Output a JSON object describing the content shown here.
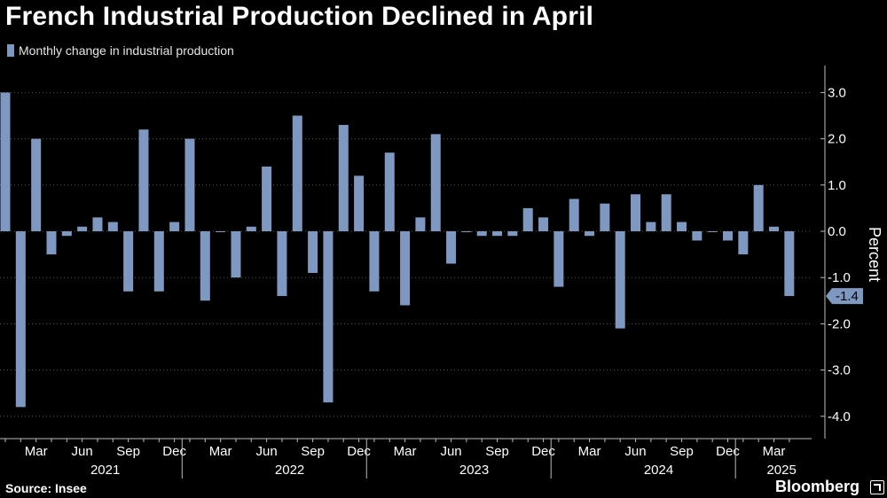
{
  "title": "French Industrial Production Declined in April",
  "legend": {
    "label": "Monthly change in industrial production"
  },
  "colors": {
    "bar": "#7f98c1",
    "axis": "#bbbbbb",
    "grid": "#555555",
    "background": "#000000"
  },
  "source": "Source: Insee",
  "brand": "Bloomberg",
  "chart_data": {
    "type": "bar",
    "title": "French Industrial Production Declined in April",
    "ylabel": "Percent",
    "ylim": [
      -4.5,
      3.3
    ],
    "yticks": [
      "3.0",
      "2.0",
      "1.0",
      "0.0",
      "-1.0",
      "-2.0",
      "-3.0",
      "-4.0"
    ],
    "ytick_values": [
      3,
      2,
      1,
      0,
      -1,
      -2,
      -3,
      -4
    ],
    "grid": true,
    "categories": [
      "Jan 2021",
      "Feb 2021",
      "Mar 2021",
      "Apr 2021",
      "May 2021",
      "Jun 2021",
      "Jul 2021",
      "Aug 2021",
      "Sep 2021",
      "Oct 2021",
      "Nov 2021",
      "Dec 2021",
      "Jan 2022",
      "Feb 2022",
      "Mar 2022",
      "Apr 2022",
      "May 2022",
      "Jun 2022",
      "Jul 2022",
      "Aug 2022",
      "Sep 2022",
      "Oct 2022",
      "Nov 2022",
      "Dec 2022",
      "Jan 2023",
      "Feb 2023",
      "Mar 2023",
      "Apr 2023",
      "May 2023",
      "Jun 2023",
      "Jul 2023",
      "Aug 2023",
      "Sep 2023",
      "Oct 2023",
      "Nov 2023",
      "Dec 2023",
      "Jan 2024",
      "Feb 2024",
      "Mar 2024",
      "Apr 2024",
      "May 2024",
      "Jun 2024",
      "Jul 2024",
      "Aug 2024",
      "Sep 2024",
      "Oct 2024",
      "Nov 2024",
      "Dec 2024",
      "Jan 2025",
      "Feb 2025",
      "Mar 2025",
      "Apr 2025"
    ],
    "series": [
      {
        "name": "Monthly change in industrial production",
        "values": [
          3.0,
          -3.8,
          2.0,
          -0.5,
          -0.1,
          0.1,
          0.3,
          0.2,
          -1.3,
          2.2,
          -1.3,
          0.2,
          2.0,
          -1.5,
          0.0,
          -1.0,
          0.1,
          1.4,
          -1.4,
          2.5,
          -0.9,
          -3.7,
          2.3,
          1.2,
          -1.3,
          1.7,
          -1.6,
          0.3,
          2.1,
          -0.7,
          0.0,
          -0.1,
          -0.1,
          -0.1,
          0.5,
          0.3,
          -1.2,
          0.7,
          -0.1,
          0.6,
          -2.1,
          0.8,
          0.2,
          0.8,
          0.2,
          -0.2,
          0.0,
          -0.2,
          -0.5,
          1.0,
          0.1,
          -1.4
        ]
      }
    ],
    "month_labels": [
      "Mar",
      "Jun",
      "Sep",
      "Dec",
      "Mar",
      "Jun",
      "Sep",
      "Dec",
      "Mar",
      "Jun",
      "Sep",
      "Dec",
      "Mar",
      "Jun",
      "Sep",
      "Dec",
      "Mar"
    ],
    "month_label_index": [
      2,
      5,
      8,
      11,
      14,
      17,
      20,
      23,
      26,
      29,
      32,
      35,
      38,
      41,
      44,
      47,
      50
    ],
    "years": [
      "2021",
      "2022",
      "2023",
      "2024",
      "2025"
    ],
    "year_center_index": [
      6.5,
      18.5,
      30.5,
      42.5,
      50.5
    ],
    "year_divider_index": [
      11.5,
      23.5,
      35.5,
      47.5
    ],
    "last_value_label": "-1.4"
  }
}
